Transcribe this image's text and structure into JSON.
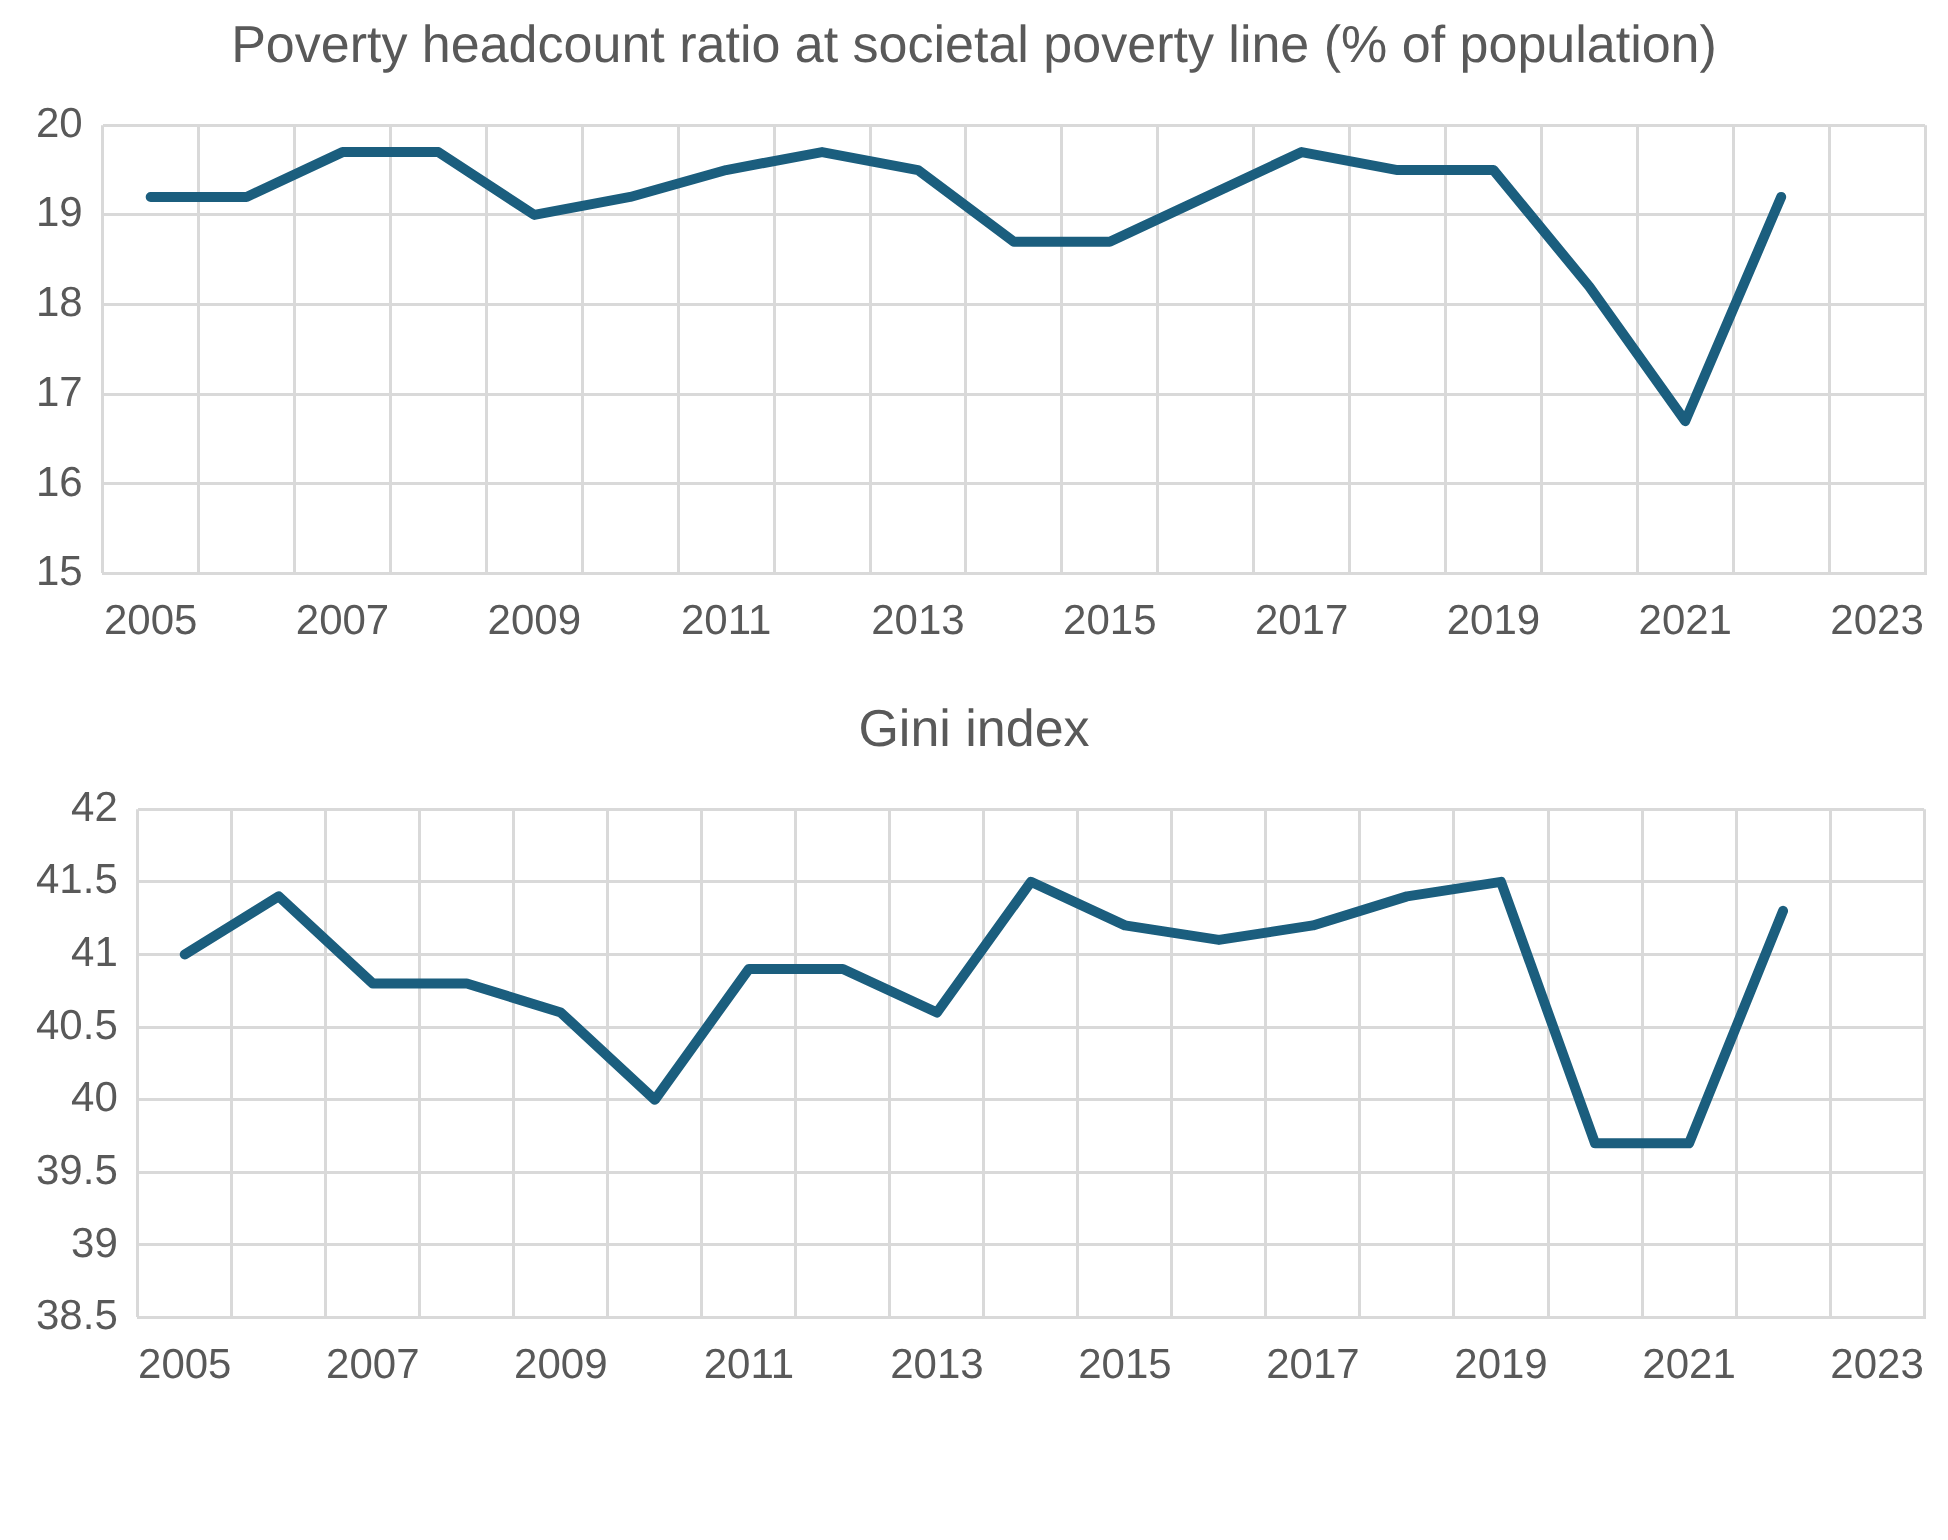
{
  "chart_data": [
    {
      "type": "line",
      "title": "Poverty headcount ratio at societal poverty line (% of population)",
      "categories": [
        "2005",
        null,
        "2007",
        null,
        "2009",
        null,
        "2011",
        null,
        "2013",
        null,
        "2015",
        null,
        "2017",
        null,
        "2019",
        null,
        "2021",
        null,
        "2023"
      ],
      "series": [
        {
          "color": "#1b5e7e",
          "values": [
            19.2,
            19.2,
            19.7,
            19.7,
            19.0,
            19.2,
            19.5,
            19.7,
            19.5,
            18.7,
            18.7,
            19.2,
            19.7,
            19.5,
            19.5,
            18.2,
            16.7,
            19.2,
            null
          ]
        }
      ],
      "ylim": [
        15,
        20
      ],
      "yticks": [
        15,
        16,
        17,
        18,
        19,
        20
      ],
      "grid": true,
      "legend": false,
      "marker": "none",
      "line_style": "solid"
    },
    {
      "type": "line",
      "title": "Gini index",
      "categories": [
        "2005",
        null,
        "2007",
        null,
        "2009",
        null,
        "2011",
        null,
        "2013",
        null,
        "2015",
        null,
        "2017",
        null,
        "2019",
        null,
        "2021",
        null,
        "2023"
      ],
      "series": [
        {
          "color": "#1b5e7e",
          "values": [
            41.0,
            41.4,
            40.8,
            40.8,
            40.6,
            40.0,
            40.9,
            40.9,
            40.6,
            41.5,
            41.2,
            41.1,
            41.2,
            41.4,
            41.5,
            39.7,
            39.7,
            41.3,
            null
          ]
        }
      ],
      "ylim": [
        38.5,
        42
      ],
      "yticks": [
        38.5,
        39,
        39.5,
        40,
        40.5,
        41,
        41.5,
        42
      ],
      "grid": true,
      "legend": false,
      "marker": "none",
      "line_style": "solid"
    }
  ]
}
